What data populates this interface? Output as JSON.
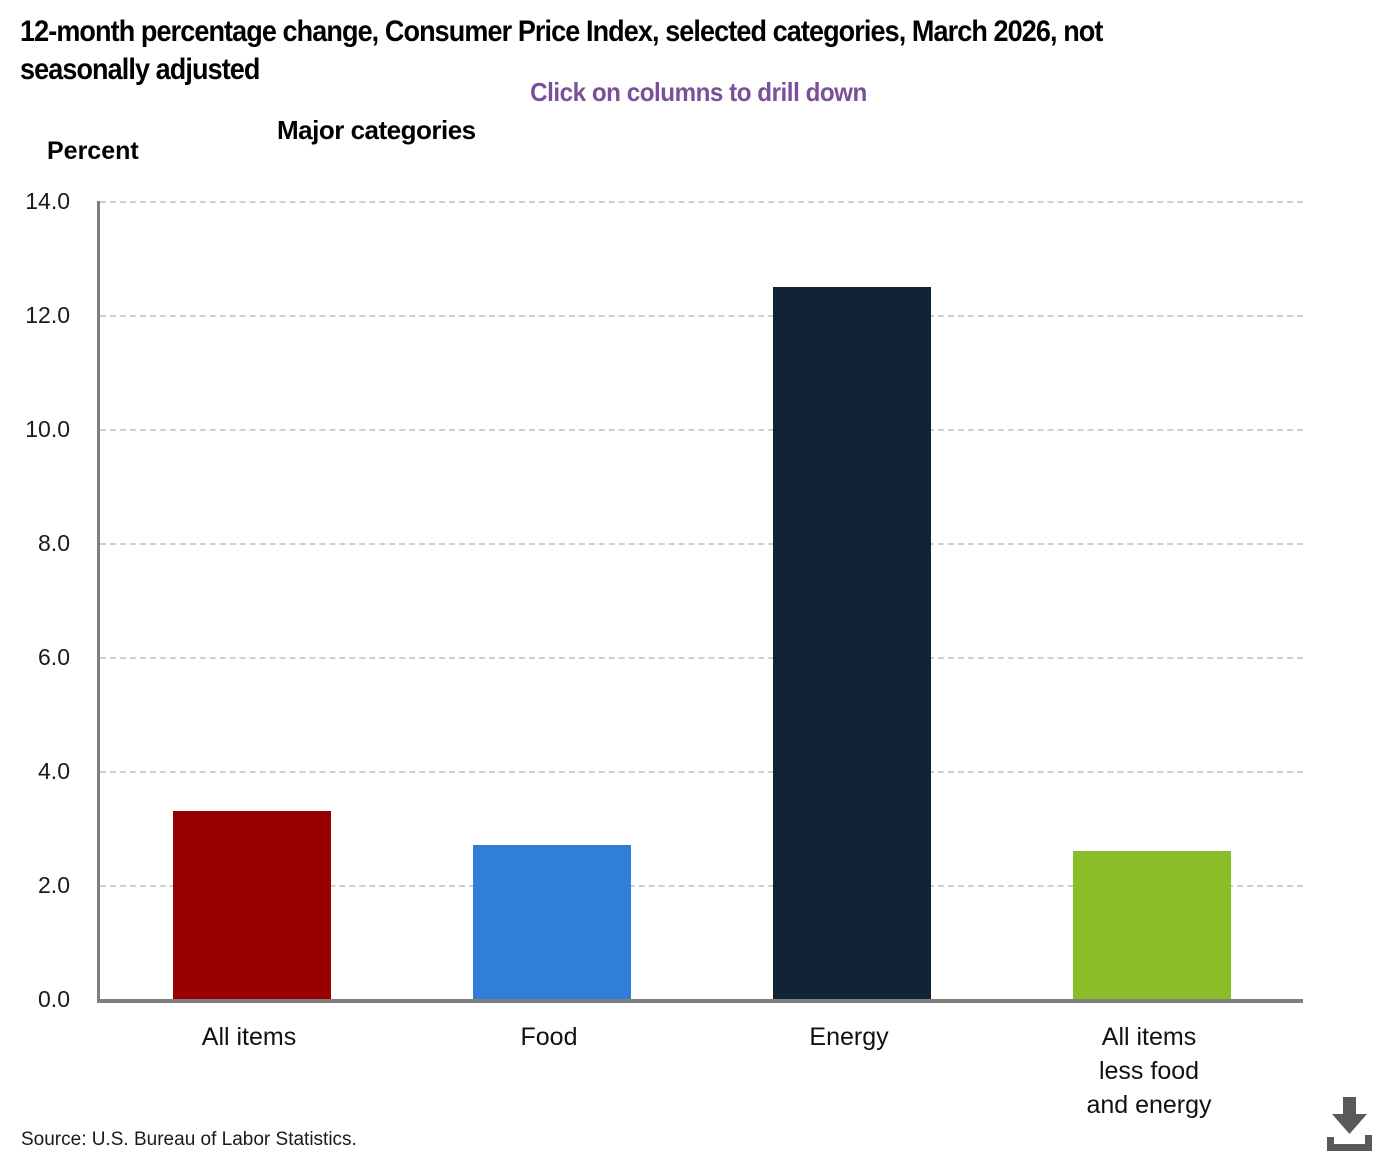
{
  "header": {
    "title": "12-month percentage change, Consumer Price Index, selected categories, March 2026, not\nseasonally adjusted",
    "subtitle": "Click on columns to drill down",
    "subtitle_color": "#7C4F99"
  },
  "chart_data": {
    "type": "bar",
    "title": "Major categories",
    "ylabel": "Percent",
    "categories": [
      "All items",
      "Food",
      "Energy",
      "All items\nless food\nand energy"
    ],
    "values": [
      3.3,
      2.7,
      12.5,
      2.6
    ],
    "bar_colors": [
      "#990000",
      "#307ED8",
      "#112337",
      "#8ABE28"
    ],
    "ylim": [
      0,
      14
    ],
    "yticks": [
      0,
      2,
      4,
      6,
      8,
      10,
      12,
      14
    ],
    "ytick_labels": [
      "0.0",
      "2.0",
      "4.0",
      "6.0",
      "8.0",
      "10.0",
      "12.0",
      "14.0"
    ],
    "grid": "horizontal-dashed",
    "legend": "none",
    "axis_color": "#7F7F7F",
    "grid_color": "#CFCFCF"
  },
  "footer": {
    "source": "Source: U.S. Bureau of Labor Statistics."
  },
  "icons": {
    "download": {
      "name": "download-icon",
      "color": "#595959"
    }
  }
}
